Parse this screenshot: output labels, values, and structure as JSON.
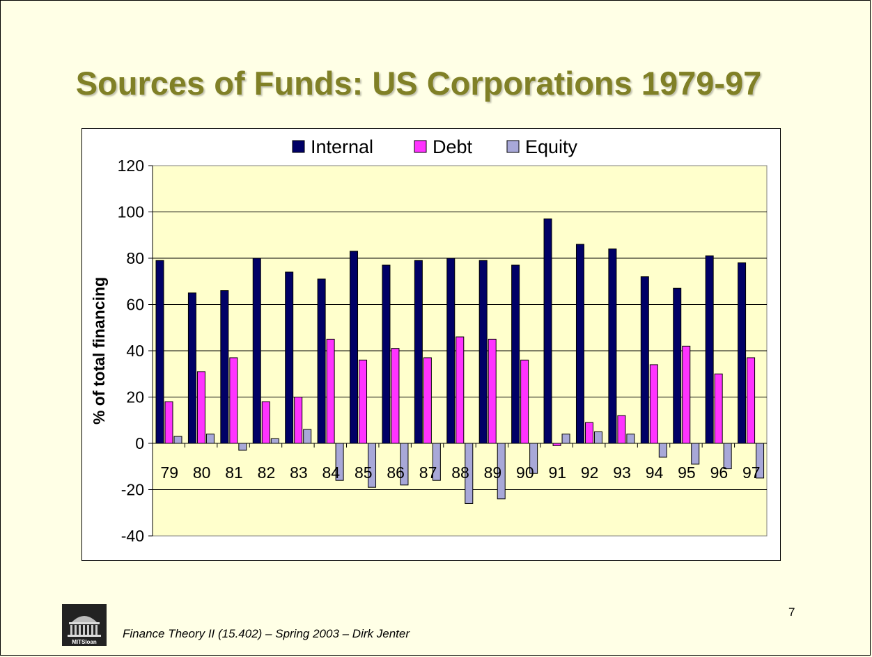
{
  "slide": {
    "title": "Sources of Funds: US Corporations 1979-97",
    "page_number": "7",
    "footer": "Finance Theory II (15.402) – Spring 2003 – Dirk Jenter",
    "logo_text": "MITSloan"
  },
  "colors": {
    "title": "#808026",
    "plot_bg": "#ffffcc",
    "internal": "#000066",
    "debt": "#ff33ff",
    "equity": "#a8a8d8"
  },
  "chart_data": {
    "type": "bar",
    "title": "",
    "xlabel": "",
    "ylabel": "% of total financing",
    "ylim": [
      -40,
      120
    ],
    "yticks": [
      -40,
      -20,
      0,
      20,
      40,
      60,
      80,
      100,
      120
    ],
    "grid": true,
    "legend": "top-center",
    "categories": [
      "79",
      "80",
      "81",
      "82",
      "83",
      "84",
      "85",
      "86",
      "87",
      "88",
      "89",
      "90",
      "91",
      "92",
      "93",
      "94",
      "95",
      "96",
      "97"
    ],
    "series": [
      {
        "name": "Internal",
        "values": [
          79,
          65,
          66,
          80,
          74,
          71,
          83,
          77,
          79,
          80,
          79,
          77,
          97,
          86,
          84,
          72,
          67,
          81,
          78
        ]
      },
      {
        "name": "Debt",
        "values": [
          18,
          31,
          37,
          18,
          20,
          45,
          36,
          41,
          37,
          46,
          45,
          36,
          -1,
          9,
          12,
          34,
          42,
          30,
          37
        ]
      },
      {
        "name": "Equity",
        "values": [
          3,
          4,
          -3,
          2,
          6,
          -16,
          -19,
          -18,
          -16,
          -26,
          -24,
          -13,
          4,
          5,
          4,
          -6,
          -9,
          -11,
          -15
        ]
      }
    ]
  }
}
